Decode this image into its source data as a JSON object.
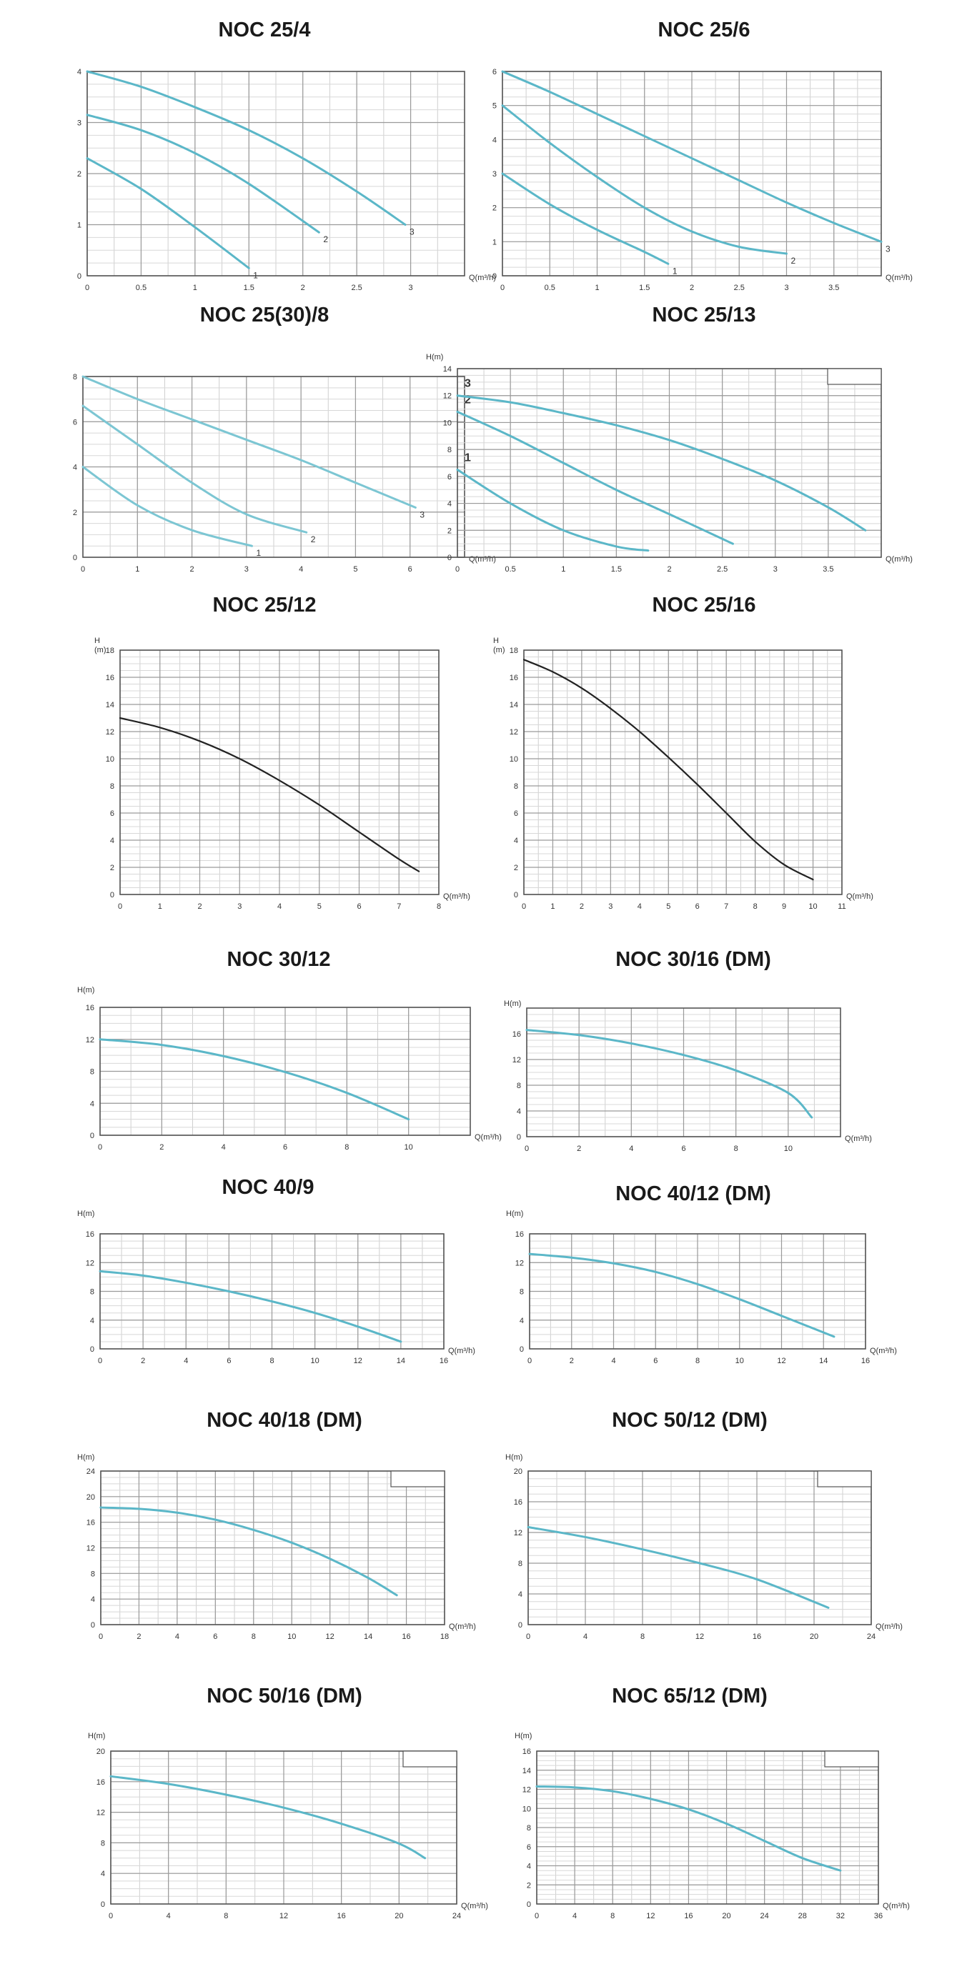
{
  "chart_data": [
    {
      "type": "line",
      "title": "NOC 25/4",
      "xlabel": "Q(m³/h)",
      "ylabel": "",
      "xlim": [
        0,
        3.5
      ],
      "ylim": [
        0,
        4
      ],
      "xticks": [
        0,
        0.5,
        1,
        1.5,
        2,
        2.5,
        3
      ],
      "yticks": [
        0,
        1,
        2,
        3,
        4
      ],
      "grid": true,
      "color": "#5bb7c8",
      "series": [
        {
          "name": "1",
          "x": [
            0,
            0.5,
            1,
            1.5
          ],
          "y": [
            2.3,
            1.7,
            0.95,
            0.15
          ]
        },
        {
          "name": "2",
          "x": [
            0,
            0.5,
            1,
            1.5,
            2.15
          ],
          "y": [
            3.15,
            2.85,
            2.4,
            1.8,
            0.85
          ]
        },
        {
          "name": "3",
          "x": [
            0,
            0.5,
            1,
            1.5,
            2,
            2.5,
            2.95
          ],
          "y": [
            4.0,
            3.7,
            3.3,
            2.85,
            2.3,
            1.65,
            1.0
          ]
        }
      ]
    },
    {
      "type": "line",
      "title": "NOC 25/6",
      "xlabel": "Q(m³/h)",
      "ylabel": "",
      "xlim": [
        0,
        4
      ],
      "ylim": [
        0,
        6
      ],
      "xticks": [
        0,
        0.5,
        1,
        1.5,
        2,
        2.5,
        3,
        3.5
      ],
      "yticks": [
        0,
        1,
        2,
        3,
        4,
        5,
        6
      ],
      "grid": true,
      "color": "#5bb7c8",
      "series": [
        {
          "name": "1",
          "x": [
            0,
            0.5,
            1,
            1.5,
            1.75
          ],
          "y": [
            3.0,
            2.1,
            1.35,
            0.7,
            0.35
          ]
        },
        {
          "name": "2",
          "x": [
            0,
            0.5,
            1,
            1.5,
            2,
            2.5,
            3.0
          ],
          "y": [
            5.0,
            3.9,
            2.9,
            2.0,
            1.3,
            0.85,
            0.65
          ]
        },
        {
          "name": "3",
          "x": [
            0,
            0.5,
            1,
            1.5,
            2,
            2.5,
            3,
            3.5,
            4.0
          ],
          "y": [
            6.0,
            5.4,
            4.75,
            4.1,
            3.45,
            2.8,
            2.15,
            1.55,
            1.0
          ]
        }
      ]
    },
    {
      "type": "line",
      "title": "NOC 25(30)/8",
      "xlabel": "Q(m³/h)",
      "ylabel": "",
      "xlim": [
        0,
        7
      ],
      "ylim": [
        0,
        8
      ],
      "xticks": [
        0,
        1,
        2,
        3,
        4,
        5,
        6
      ],
      "yticks": [
        0,
        2,
        4,
        6,
        8
      ],
      "grid": true,
      "color": "#7cc6d3",
      "series": [
        {
          "name": "1",
          "x": [
            0,
            1,
            2,
            3.1
          ],
          "y": [
            4.0,
            2.3,
            1.2,
            0.5
          ]
        },
        {
          "name": "2",
          "x": [
            0,
            1,
            2,
            3,
            4.1
          ],
          "y": [
            6.7,
            5.0,
            3.3,
            1.9,
            1.1
          ]
        },
        {
          "name": "3",
          "x": [
            0,
            1,
            2,
            3,
            4,
            5,
            6.1
          ],
          "y": [
            8.0,
            7.0,
            6.1,
            5.2,
            4.3,
            3.3,
            2.2
          ]
        }
      ]
    },
    {
      "type": "line",
      "title": "NOC 25/13",
      "xlabel": "Q(m³/h)",
      "ylabel": "H(m)",
      "xlim": [
        0,
        4
      ],
      "ylim": [
        0,
        14
      ],
      "xticks": [
        0,
        0.5,
        1,
        1.5,
        2,
        2.5,
        3,
        3.5
      ],
      "yticks": [
        0,
        2,
        4,
        6,
        8,
        10,
        12,
        14
      ],
      "grid": true,
      "color": "#5bb7c8",
      "series": [
        {
          "name": "1",
          "x": [
            0,
            0.5,
            1,
            1.5,
            1.8
          ],
          "y": [
            6.5,
            4.0,
            2.0,
            0.8,
            0.5
          ]
        },
        {
          "name": "2",
          "x": [
            0,
            0.5,
            1,
            1.5,
            2,
            2.6
          ],
          "y": [
            10.8,
            9.0,
            7.0,
            5.0,
            3.2,
            1.0
          ]
        },
        {
          "name": "3",
          "x": [
            0,
            0.5,
            1,
            1.5,
            2,
            2.5,
            3,
            3.5,
            3.85
          ],
          "y": [
            12.0,
            11.5,
            10.7,
            9.8,
            8.7,
            7.3,
            5.7,
            3.7,
            2.0
          ]
        }
      ]
    },
    {
      "type": "line",
      "title": "NOC 25/12",
      "xlabel": "Q(m³/h)",
      "ylabel": "H\n(m)",
      "xlim": [
        0,
        8
      ],
      "ylim": [
        0,
        18
      ],
      "xticks": [
        0,
        1,
        2,
        3,
        4,
        5,
        6,
        7,
        8
      ],
      "yticks": [
        0,
        2,
        4,
        6,
        8,
        10,
        12,
        14,
        16,
        18
      ],
      "grid": true,
      "color": "#222222",
      "series": [
        {
          "name": "",
          "x": [
            0,
            1,
            2,
            3,
            4,
            5,
            6,
            7,
            7.5
          ],
          "y": [
            13.0,
            12.3,
            11.3,
            10.0,
            8.4,
            6.6,
            4.6,
            2.6,
            1.7
          ]
        }
      ]
    },
    {
      "type": "line",
      "title": "NOC 25/16",
      "xlabel": "Q(m³/h)",
      "ylabel": "H\n(m)",
      "xlim": [
        0,
        11
      ],
      "ylim": [
        0,
        18
      ],
      "xticks": [
        0,
        1,
        2,
        3,
        4,
        5,
        6,
        7,
        8,
        9,
        10,
        11
      ],
      "yticks": [
        0,
        2,
        4,
        6,
        8,
        10,
        12,
        14,
        16,
        18
      ],
      "grid": true,
      "color": "#222222",
      "series": [
        {
          "name": "",
          "x": [
            0,
            1,
            2,
            3,
            4,
            5,
            6,
            7,
            8,
            9,
            10
          ],
          "y": [
            17.3,
            16.4,
            15.2,
            13.7,
            12.0,
            10.1,
            8.1,
            6.0,
            3.9,
            2.2,
            1.1
          ]
        }
      ]
    },
    {
      "type": "line",
      "title": "NOC 30/12",
      "xlabel": "Q(m³/h)",
      "ylabel": "H(m)",
      "xlim": [
        0,
        12
      ],
      "ylim": [
        0,
        16
      ],
      "xticks": [
        0,
        2,
        4,
        6,
        8,
        10
      ],
      "yticks": [
        0,
        4,
        8,
        12,
        16
      ],
      "grid": true,
      "color": "#5bb7c8",
      "series": [
        {
          "name": "",
          "x": [
            0,
            2,
            4,
            6,
            8,
            10
          ],
          "y": [
            12.0,
            11.3,
            9.9,
            7.9,
            5.3,
            2.0
          ]
        }
      ]
    },
    {
      "type": "line",
      "title": "NOC 30/16 (DM)",
      "xlabel": "Q(m³/h)",
      "ylabel": "H(m)",
      "xlim": [
        0,
        12
      ],
      "ylim": [
        0,
        20
      ],
      "xticks": [
        0,
        2,
        4,
        6,
        8,
        10
      ],
      "yticks": [
        0,
        4,
        8,
        12,
        16
      ],
      "grid": true,
      "color": "#5bb7c8",
      "series": [
        {
          "name": "",
          "x": [
            0,
            2,
            4,
            6,
            8,
            10,
            10.9
          ],
          "y": [
            16.6,
            15.8,
            14.5,
            12.7,
            10.3,
            6.8,
            3.0
          ]
        }
      ]
    },
    {
      "type": "line",
      "title": "NOC 40/9",
      "xlabel": "Q(m³/h)",
      "ylabel": "H(m)",
      "xlim": [
        0,
        16
      ],
      "ylim": [
        0,
        16
      ],
      "xticks": [
        0,
        2,
        4,
        6,
        8,
        10,
        12,
        14,
        16
      ],
      "yticks": [
        0,
        4,
        8,
        12,
        16
      ],
      "grid": true,
      "color": "#5bb7c8",
      "series": [
        {
          "name": "",
          "x": [
            0,
            2,
            4,
            6,
            8,
            10,
            12,
            14
          ],
          "y": [
            10.8,
            10.2,
            9.2,
            8.0,
            6.6,
            5.0,
            3.1,
            1.0
          ]
        }
      ]
    },
    {
      "type": "line",
      "title": "NOC 40/12 (DM)",
      "xlabel": "Q(m³/h)",
      "ylabel": "H(m)",
      "xlim": [
        0,
        16
      ],
      "ylim": [
        0,
        16
      ],
      "xticks": [
        0,
        2,
        4,
        6,
        8,
        10,
        12,
        14,
        16
      ],
      "yticks": [
        0,
        4,
        8,
        12,
        16
      ],
      "grid": true,
      "color": "#5bb7c8",
      "series": [
        {
          "name": "",
          "x": [
            0,
            2,
            4,
            6,
            8,
            10,
            12,
            14.5
          ],
          "y": [
            13.2,
            12.7,
            11.9,
            10.7,
            9.0,
            6.9,
            4.6,
            1.7
          ]
        }
      ]
    },
    {
      "type": "line",
      "title": "NOC 40/18 (DM)",
      "xlabel": "Q(m³/h)",
      "ylabel": "H(m)",
      "xlim": [
        0,
        18
      ],
      "ylim": [
        0,
        24
      ],
      "xticks": [
        0,
        2,
        4,
        6,
        8,
        10,
        12,
        14,
        16,
        18
      ],
      "yticks": [
        0,
        4,
        8,
        12,
        16,
        20,
        24
      ],
      "grid": true,
      "color": "#5bb7c8",
      "series": [
        {
          "name": "",
          "x": [
            0,
            2,
            4,
            6,
            8,
            10,
            12,
            14,
            15.5
          ],
          "y": [
            18.3,
            18.1,
            17.5,
            16.4,
            14.8,
            12.8,
            10.3,
            7.3,
            4.6
          ]
        }
      ]
    },
    {
      "type": "line",
      "title": "NOC 50/12 (DM)",
      "xlabel": "Q(m³/h)",
      "ylabel": "H(m)",
      "xlim": [
        0,
        24
      ],
      "ylim": [
        0,
        20
      ],
      "xticks": [
        0,
        4,
        8,
        12,
        16,
        20,
        24
      ],
      "yticks": [
        0,
        4,
        8,
        12,
        16,
        20
      ],
      "grid": true,
      "color": "#5bb7c8",
      "series": [
        {
          "name": "",
          "x": [
            0,
            4,
            8,
            12,
            16,
            21
          ],
          "y": [
            12.7,
            11.4,
            9.8,
            8.0,
            5.9,
            2.2
          ]
        }
      ]
    },
    {
      "type": "line",
      "title": "NOC 50/16 (DM)",
      "xlabel": "Q(m³/h)",
      "ylabel": "H(m)",
      "xlim": [
        0,
        24
      ],
      "ylim": [
        0,
        20
      ],
      "xticks": [
        0,
        4,
        8,
        12,
        16,
        20,
        24
      ],
      "yticks": [
        0,
        4,
        8,
        12,
        16,
        20
      ],
      "grid": true,
      "color": "#5bb7c8",
      "series": [
        {
          "name": "",
          "x": [
            0,
            4,
            8,
            12,
            16,
            20,
            21.8
          ],
          "y": [
            16.7,
            15.7,
            14.3,
            12.6,
            10.5,
            7.9,
            6.0
          ]
        }
      ]
    },
    {
      "type": "line",
      "title": "NOC 65/12 (DM)",
      "xlabel": "Q(m³/h)",
      "ylabel": "H(m)",
      "xlim": [
        0,
        36
      ],
      "ylim": [
        0,
        16
      ],
      "xticks": [
        0,
        4,
        8,
        12,
        16,
        20,
        24,
        28,
        32,
        36
      ],
      "yticks": [
        0,
        2,
        4,
        6,
        8,
        10,
        12,
        14,
        16
      ],
      "grid": true,
      "color": "#5bb7c8",
      "series": [
        {
          "name": "",
          "x": [
            0,
            4,
            8,
            12,
            16,
            20,
            24,
            28,
            32
          ],
          "y": [
            12.3,
            12.2,
            11.8,
            11.0,
            9.9,
            8.4,
            6.6,
            4.8,
            3.5
          ]
        }
      ]
    }
  ]
}
